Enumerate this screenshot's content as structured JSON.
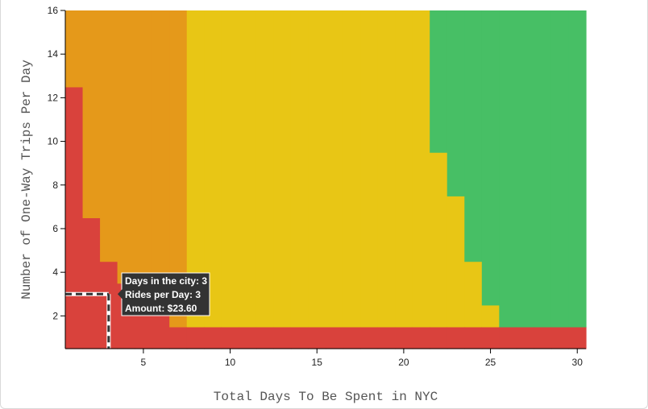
{
  "chart_data": {
    "type": "heatmap",
    "xlabel": "Total Days To Be Spent in NYC",
    "ylabel": "Number of One-Way Trips Per Day",
    "xlim": [
      0.5,
      30.5
    ],
    "ylim": [
      0.5,
      16
    ],
    "x_ticks": [
      5,
      10,
      15,
      20,
      25,
      30
    ],
    "y_ticks": [
      2,
      4,
      6,
      8,
      10,
      12,
      14,
      16
    ],
    "colors": {
      "red": "#d9423c",
      "orange": "#e5991a",
      "yellow": "#e8c615",
      "green": "#47bf65"
    },
    "regions_by_day": [
      {
        "day": 1,
        "red_up_to": 12,
        "orange_up_to": 16,
        "yellow_up_to": 16
      },
      {
        "day": 2,
        "red_up_to": 6,
        "orange_up_to": 16,
        "yellow_up_to": 16
      },
      {
        "day": 3,
        "red_up_to": 4,
        "orange_up_to": 16,
        "yellow_up_to": 16
      },
      {
        "day": 4,
        "red_up_to": 3,
        "orange_up_to": 16,
        "yellow_up_to": 16
      },
      {
        "day": 5,
        "red_up_to": 2,
        "orange_up_to": 16,
        "yellow_up_to": 16
      },
      {
        "day": 6,
        "red_up_to": 2,
        "orange_up_to": 16,
        "yellow_up_to": 16
      },
      {
        "day": 7,
        "red_up_to": 1,
        "orange_up_to": 16,
        "yellow_up_to": 16
      },
      {
        "day": 8,
        "red_up_to": 1,
        "orange_up_to": 1,
        "yellow_up_to": 16
      },
      {
        "day": 9,
        "red_up_to": 1,
        "orange_up_to": 1,
        "yellow_up_to": 16
      },
      {
        "day": 10,
        "red_up_to": 1,
        "orange_up_to": 1,
        "yellow_up_to": 16
      },
      {
        "day": 11,
        "red_up_to": 1,
        "orange_up_to": 1,
        "yellow_up_to": 16
      },
      {
        "day": 12,
        "red_up_to": 1,
        "orange_up_to": 1,
        "yellow_up_to": 16
      },
      {
        "day": 13,
        "red_up_to": 1,
        "orange_up_to": 1,
        "yellow_up_to": 16
      },
      {
        "day": 14,
        "red_up_to": 1,
        "orange_up_to": 1,
        "yellow_up_to": 16
      },
      {
        "day": 15,
        "red_up_to": 1,
        "orange_up_to": 1,
        "yellow_up_to": 16
      },
      {
        "day": 16,
        "red_up_to": 1,
        "orange_up_to": 1,
        "yellow_up_to": 16
      },
      {
        "day": 17,
        "red_up_to": 1,
        "orange_up_to": 1,
        "yellow_up_to": 16
      },
      {
        "day": 18,
        "red_up_to": 1,
        "orange_up_to": 1,
        "yellow_up_to": 16
      },
      {
        "day": 19,
        "red_up_to": 1,
        "orange_up_to": 1,
        "yellow_up_to": 16
      },
      {
        "day": 20,
        "red_up_to": 1,
        "orange_up_to": 1,
        "yellow_up_to": 16
      },
      {
        "day": 21,
        "red_up_to": 1,
        "orange_up_to": 1,
        "yellow_up_to": 16
      },
      {
        "day": 22,
        "red_up_to": 1,
        "orange_up_to": 1,
        "yellow_up_to": 9
      },
      {
        "day": 23,
        "red_up_to": 1,
        "orange_up_to": 1,
        "yellow_up_to": 7
      },
      {
        "day": 24,
        "red_up_to": 1,
        "orange_up_to": 1,
        "yellow_up_to": 4
      },
      {
        "day": 25,
        "red_up_to": 1,
        "orange_up_to": 1,
        "yellow_up_to": 2
      },
      {
        "day": 26,
        "red_up_to": 1,
        "orange_up_to": 1,
        "yellow_up_to": 1
      },
      {
        "day": 27,
        "red_up_to": 1,
        "orange_up_to": 1,
        "yellow_up_to": 1
      },
      {
        "day": 28,
        "red_up_to": 1,
        "orange_up_to": 1,
        "yellow_up_to": 1
      },
      {
        "day": 29,
        "red_up_to": 1,
        "orange_up_to": 1,
        "yellow_up_to": 1
      },
      {
        "day": 30,
        "red_up_to": 1,
        "orange_up_to": 1,
        "yellow_up_to": 1
      }
    ],
    "hover": {
      "day": 3,
      "rides": 3,
      "lines": [
        "Days in the city: 3",
        "Rides per Day: 3",
        "Amount: $23.60"
      ]
    }
  }
}
